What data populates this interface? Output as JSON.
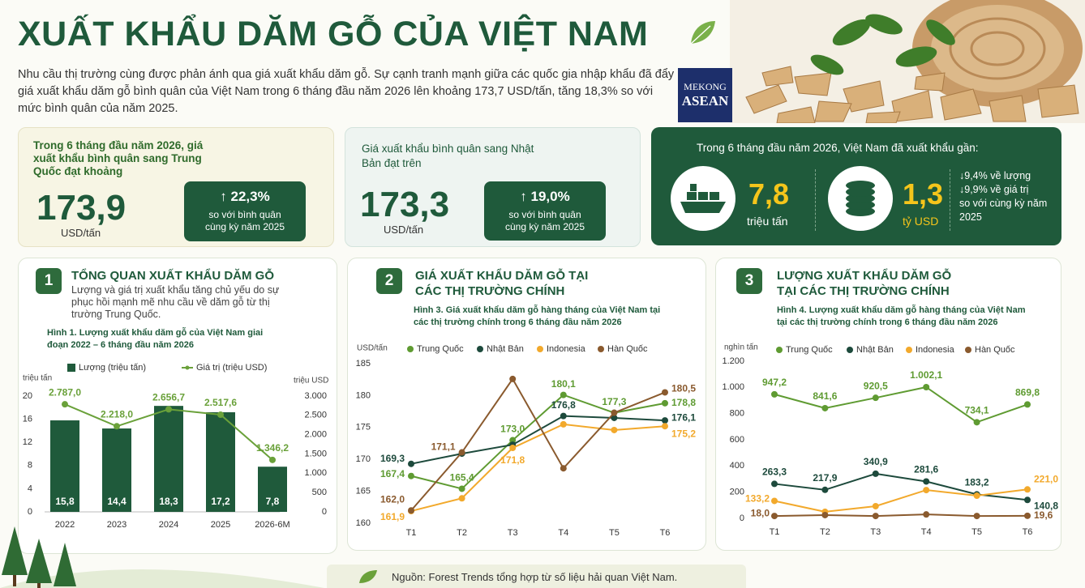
{
  "header": {
    "title": "XUẤT KHẨU DĂM GỖ CỦA VIỆT NAM",
    "intro": "Nhu cầu thị trường cùng được phản ánh qua giá xuất khẩu dăm gỗ. Sự cạnh tranh mạnh giữa các quốc gia nhập khẩu đã đẩy giá xuất khẩu dăm gỗ bình quân của Việt Nam trong 6 tháng đầu năm 2026 lên khoảng 173,7 USD/tấn, tăng 18,3% so với mức bình quân của năm 2025.",
    "logo": [
      "MEKONG",
      "ASEAN"
    ]
  },
  "cards": [
    {
      "text": "Trong 6 tháng đầu năm 2026, giá xuất khẩu bình quân sang Trung Quốc đạt khoảng",
      "value": "173,9",
      "unit": "USD/tấn",
      "change": "↑ 22,3%",
      "note": "so với bình quân cùng kỳ năm 2025"
    },
    {
      "text": "Giá xuất khẩu bình quân sang Nhật Bản đạt trên",
      "value": "173,3",
      "unit": "USD/tấn",
      "change": "↑ 19,0%",
      "note": "so với bình quân cùng kỳ năm 2025"
    }
  ],
  "summary": {
    "text": "Trong 6 tháng đầu năm 2026, Việt Nam đã xuất khẩu gần:",
    "items": [
      {
        "value": "7,8",
        "unit": "triệu tấn"
      },
      {
        "value": "1,3",
        "unit": "tỷ USD"
      }
    ],
    "changes": [
      "↓9,4% về lượng",
      "↓9,9% về giá trị",
      "so với cùng kỳ năm 2025"
    ]
  },
  "sections": [
    {
      "number": "1",
      "title": "TỔNG QUAN XUẤT KHẨU DĂM GỖ",
      "description": "Lượng và giá trị xuất khẩu tăng chủ yếu do sự phục hồi mạnh mẽ nhu cầu về dăm gỗ từ thị trường Trung Quốc."
    },
    {
      "number": "2",
      "title": "GIÁ XUẤT KHẨU DĂM GỖ TẠI CÁC THỊ TRƯỜNG CHÍNH"
    },
    {
      "number": "3",
      "title": "LƯỢNG XUẤT KHẨU DĂM GỖ TẠI CÁC THỊ TRƯỜNG CHÍNH"
    }
  ],
  "chart_data": [
    {
      "type": "bar_line",
      "title": "Hình 1. Lượng xuất khẩu dăm gỗ của Việt Nam giai đoạn 2022 – 6 tháng đầu năm 2026",
      "categories": [
        "2022",
        "2023",
        "2024",
        "2025",
        "2026-6M"
      ],
      "series": [
        {
          "name": "Lượng (triệu tấn)",
          "type": "bar",
          "color": "#1f5a3b",
          "values": [
            15.8,
            14.4,
            18.3,
            17.2,
            7.8
          ],
          "value_labels": [
            "15,8",
            "14,4",
            "18,3",
            "17,2",
            "7,8"
          ]
        },
        {
          "name": "Giá trị (triệu USD)",
          "type": "line",
          "axis": "y2",
          "color": "#6aa13a",
          "values": [
            2787.0,
            2218.0,
            2656.7,
            2517.6,
            1346.2
          ],
          "value_labels": [
            "2.787,0",
            "2.218,0",
            "2.656,7",
            "2.517,6",
            "1.346,2"
          ]
        }
      ],
      "ylabel": "triệu tấn",
      "ylim": [
        0,
        20
      ],
      "yticks": [
        0,
        4,
        8,
        12,
        16,
        20
      ],
      "y2label": "triệu USD",
      "y2lim": [
        0,
        3000
      ],
      "y2ticks": [
        0,
        500,
        {
          "value": 1000,
          "label": "1.000"
        },
        {
          "value": 1500,
          "label": "1.500"
        },
        {
          "value": 2000,
          "label": "2.000"
        },
        {
          "value": 2500,
          "label": "2.500"
        },
        {
          "value": 3000,
          "label": "3.000"
        }
      ]
    },
    {
      "type": "line",
      "title": "Hình 3. Giá xuất khẩu dăm gỗ hàng tháng của Việt Nam tại các thị trường chính trong 6 tháng đầu năm 2026",
      "ylabel": "USD/tấn",
      "categories": [
        "T1",
        "T2",
        "T3",
        "T4",
        "T5",
        "T6"
      ],
      "series": [
        {
          "name": "Trung Quốc",
          "color": "#5f9b32",
          "values": [
            167.4,
            165.4,
            173.0,
            180.1,
            177.3,
            178.8
          ],
          "value_labels": [
            "167,4",
            "165,4",
            "173,0",
            "180,1",
            "177,3",
            "178,8"
          ]
        },
        {
          "name": "Nhật Bản",
          "color": "#1d4a3c",
          "values": [
            169.3,
            170.9,
            172.3,
            176.8,
            176.5,
            176.1
          ],
          "value_labels": [
            "169,3",
            null,
            null,
            "176,8",
            null,
            "176,1"
          ]
        },
        {
          "name": "Indonesia",
          "color": "#f2a92c",
          "values": [
            161.9,
            163.9,
            171.8,
            175.5,
            174.6,
            175.2
          ],
          "value_labels": [
            "161,9",
            null,
            "171,8",
            null,
            null,
            "175,2"
          ]
        },
        {
          "name": "Hàn Quốc",
          "color": "#8a5a2e",
          "values": [
            162.0,
            171.1,
            182.6,
            168.6,
            177.3,
            180.5
          ],
          "value_labels": [
            "162,0",
            "171,1",
            null,
            null,
            null,
            "180,5"
          ]
        }
      ],
      "ylim": [
        160,
        185
      ],
      "yticks": [
        160,
        165,
        170,
        175,
        180,
        185
      ]
    },
    {
      "type": "line",
      "title": "Hình 4. Lượng xuất khẩu dăm gỗ hàng tháng của Việt Nam tại các thị trường chính trong 6 tháng đầu năm 2026",
      "ylabel": "nghìn tấn",
      "categories": [
        "T1",
        "T2",
        "T3",
        "T4",
        "T5",
        "T6"
      ],
      "series": [
        {
          "name": "Trung Quốc",
          "color": "#5f9b32",
          "values": [
            947.2,
            841.6,
            920.5,
            1002.1,
            734.1,
            869.8
          ],
          "value_labels": [
            "947,2",
            "841,6",
            "920,5",
            "1.002,1",
            "734,1",
            "869,8"
          ]
        },
        {
          "name": "Nhật Bản",
          "color": "#1d4a3c",
          "values": [
            263.3,
            217.9,
            340.9,
            281.6,
            183.2,
            140.8
          ],
          "value_labels": [
            "263,3",
            "217,9",
            "340,9",
            "281,6",
            "183,2",
            "140,8"
          ]
        },
        {
          "name": "Indonesia",
          "color": "#f2a92c",
          "values": [
            133.2,
            50,
            93,
            216,
            173,
            221.0
          ],
          "value_labels": [
            "133,2",
            null,
            null,
            null,
            null,
            "221,0"
          ]
        },
        {
          "name": "Hàn Quốc",
          "color": "#8a5a2e",
          "values": [
            18.0,
            25,
            18,
            30,
            18,
            19.6
          ],
          "value_labels": [
            "18,0",
            null,
            null,
            null,
            null,
            "19,6"
          ]
        }
      ],
      "ylim": [
        0,
        1200
      ],
      "yticks": [
        0,
        200,
        400,
        600,
        800,
        {
          "value": 1000,
          "label": "1.000"
        },
        {
          "value": 1200,
          "label": "1.200"
        }
      ]
    }
  ],
  "source": "Nguồn: Forest Trends tổng hợp từ số liệu hải quan Việt Nam."
}
